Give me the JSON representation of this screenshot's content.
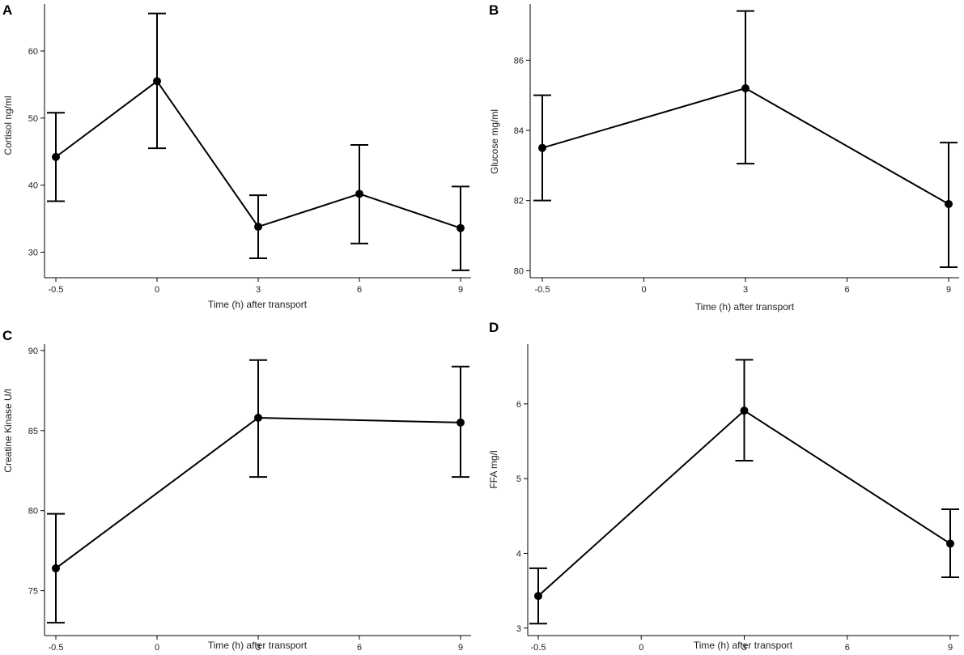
{
  "figure": {
    "background": "#ffffff",
    "ink": "#000000"
  },
  "chart_data": [
    {
      "panel": "A",
      "type": "line",
      "xlabel": "Time (h) after transport",
      "ylabel": "Cortisol ng/ml",
      "x_categories": [
        "-0.5",
        "0",
        "3",
        "6",
        "9"
      ],
      "yticks": [
        30,
        40,
        50,
        60
      ],
      "ylim": [
        26.2,
        67
      ],
      "points": [
        {
          "x": "-0.5",
          "y": 44.2,
          "lower": 37.6,
          "upper": 50.8
        },
        {
          "x": "0",
          "y": 55.5,
          "lower": 45.5,
          "upper": 65.6
        },
        {
          "x": "3",
          "y": 33.8,
          "lower": 29.1,
          "upper": 38.5
        },
        {
          "x": "6",
          "y": 38.7,
          "lower": 31.3,
          "upper": 46.0
        },
        {
          "x": "9",
          "y": 33.6,
          "lower": 27.3,
          "upper": 39.8
        }
      ]
    },
    {
      "panel": "B",
      "type": "line",
      "xlabel": "Time (h) after transport",
      "ylabel": "Glucose mg/ml",
      "x_categories": [
        "-0.5",
        "0",
        "3",
        "6",
        "9"
      ],
      "yticks": [
        80,
        82,
        84,
        86
      ],
      "ylim": [
        79.8,
        87.6
      ],
      "points": [
        {
          "x": "-0.5",
          "y": 83.5,
          "lower": 82.0,
          "upper": 85.0
        },
        {
          "x": "3",
          "y": 85.2,
          "lower": 83.05,
          "upper": 87.4
        },
        {
          "x": "9",
          "y": 81.9,
          "lower": 80.1,
          "upper": 83.65
        }
      ]
    },
    {
      "panel": "C",
      "type": "line",
      "xlabel": "Time (h) after transport",
      "ylabel": "Creatine Kinase U/l",
      "x_categories": [
        "-0.5",
        "0",
        "3",
        "6",
        "9"
      ],
      "yticks": [
        75,
        80,
        85,
        90
      ],
      "ylim": [
        72.2,
        90.4
      ],
      "points": [
        {
          "x": "-0.5",
          "y": 76.4,
          "lower": 73.0,
          "upper": 79.8
        },
        {
          "x": "3",
          "y": 85.8,
          "lower": 82.1,
          "upper": 89.4
        },
        {
          "x": "9",
          "y": 85.5,
          "lower": 82.1,
          "upper": 89.0
        }
      ]
    },
    {
      "panel": "D",
      "type": "line",
      "xlabel": "Time (h) after transport",
      "ylabel": "FFA mg/l",
      "x_categories": [
        "-0.5",
        "0",
        "3",
        "6",
        "9"
      ],
      "yticks": [
        3,
        4,
        5,
        6
      ],
      "ylim": [
        2.9,
        6.8
      ],
      "points": [
        {
          "x": "-0.5",
          "y": 3.43,
          "lower": 3.06,
          "upper": 3.8
        },
        {
          "x": "3",
          "y": 5.91,
          "lower": 5.24,
          "upper": 6.59
        },
        {
          "x": "9",
          "y": 4.13,
          "lower": 3.68,
          "upper": 4.59
        }
      ]
    }
  ]
}
